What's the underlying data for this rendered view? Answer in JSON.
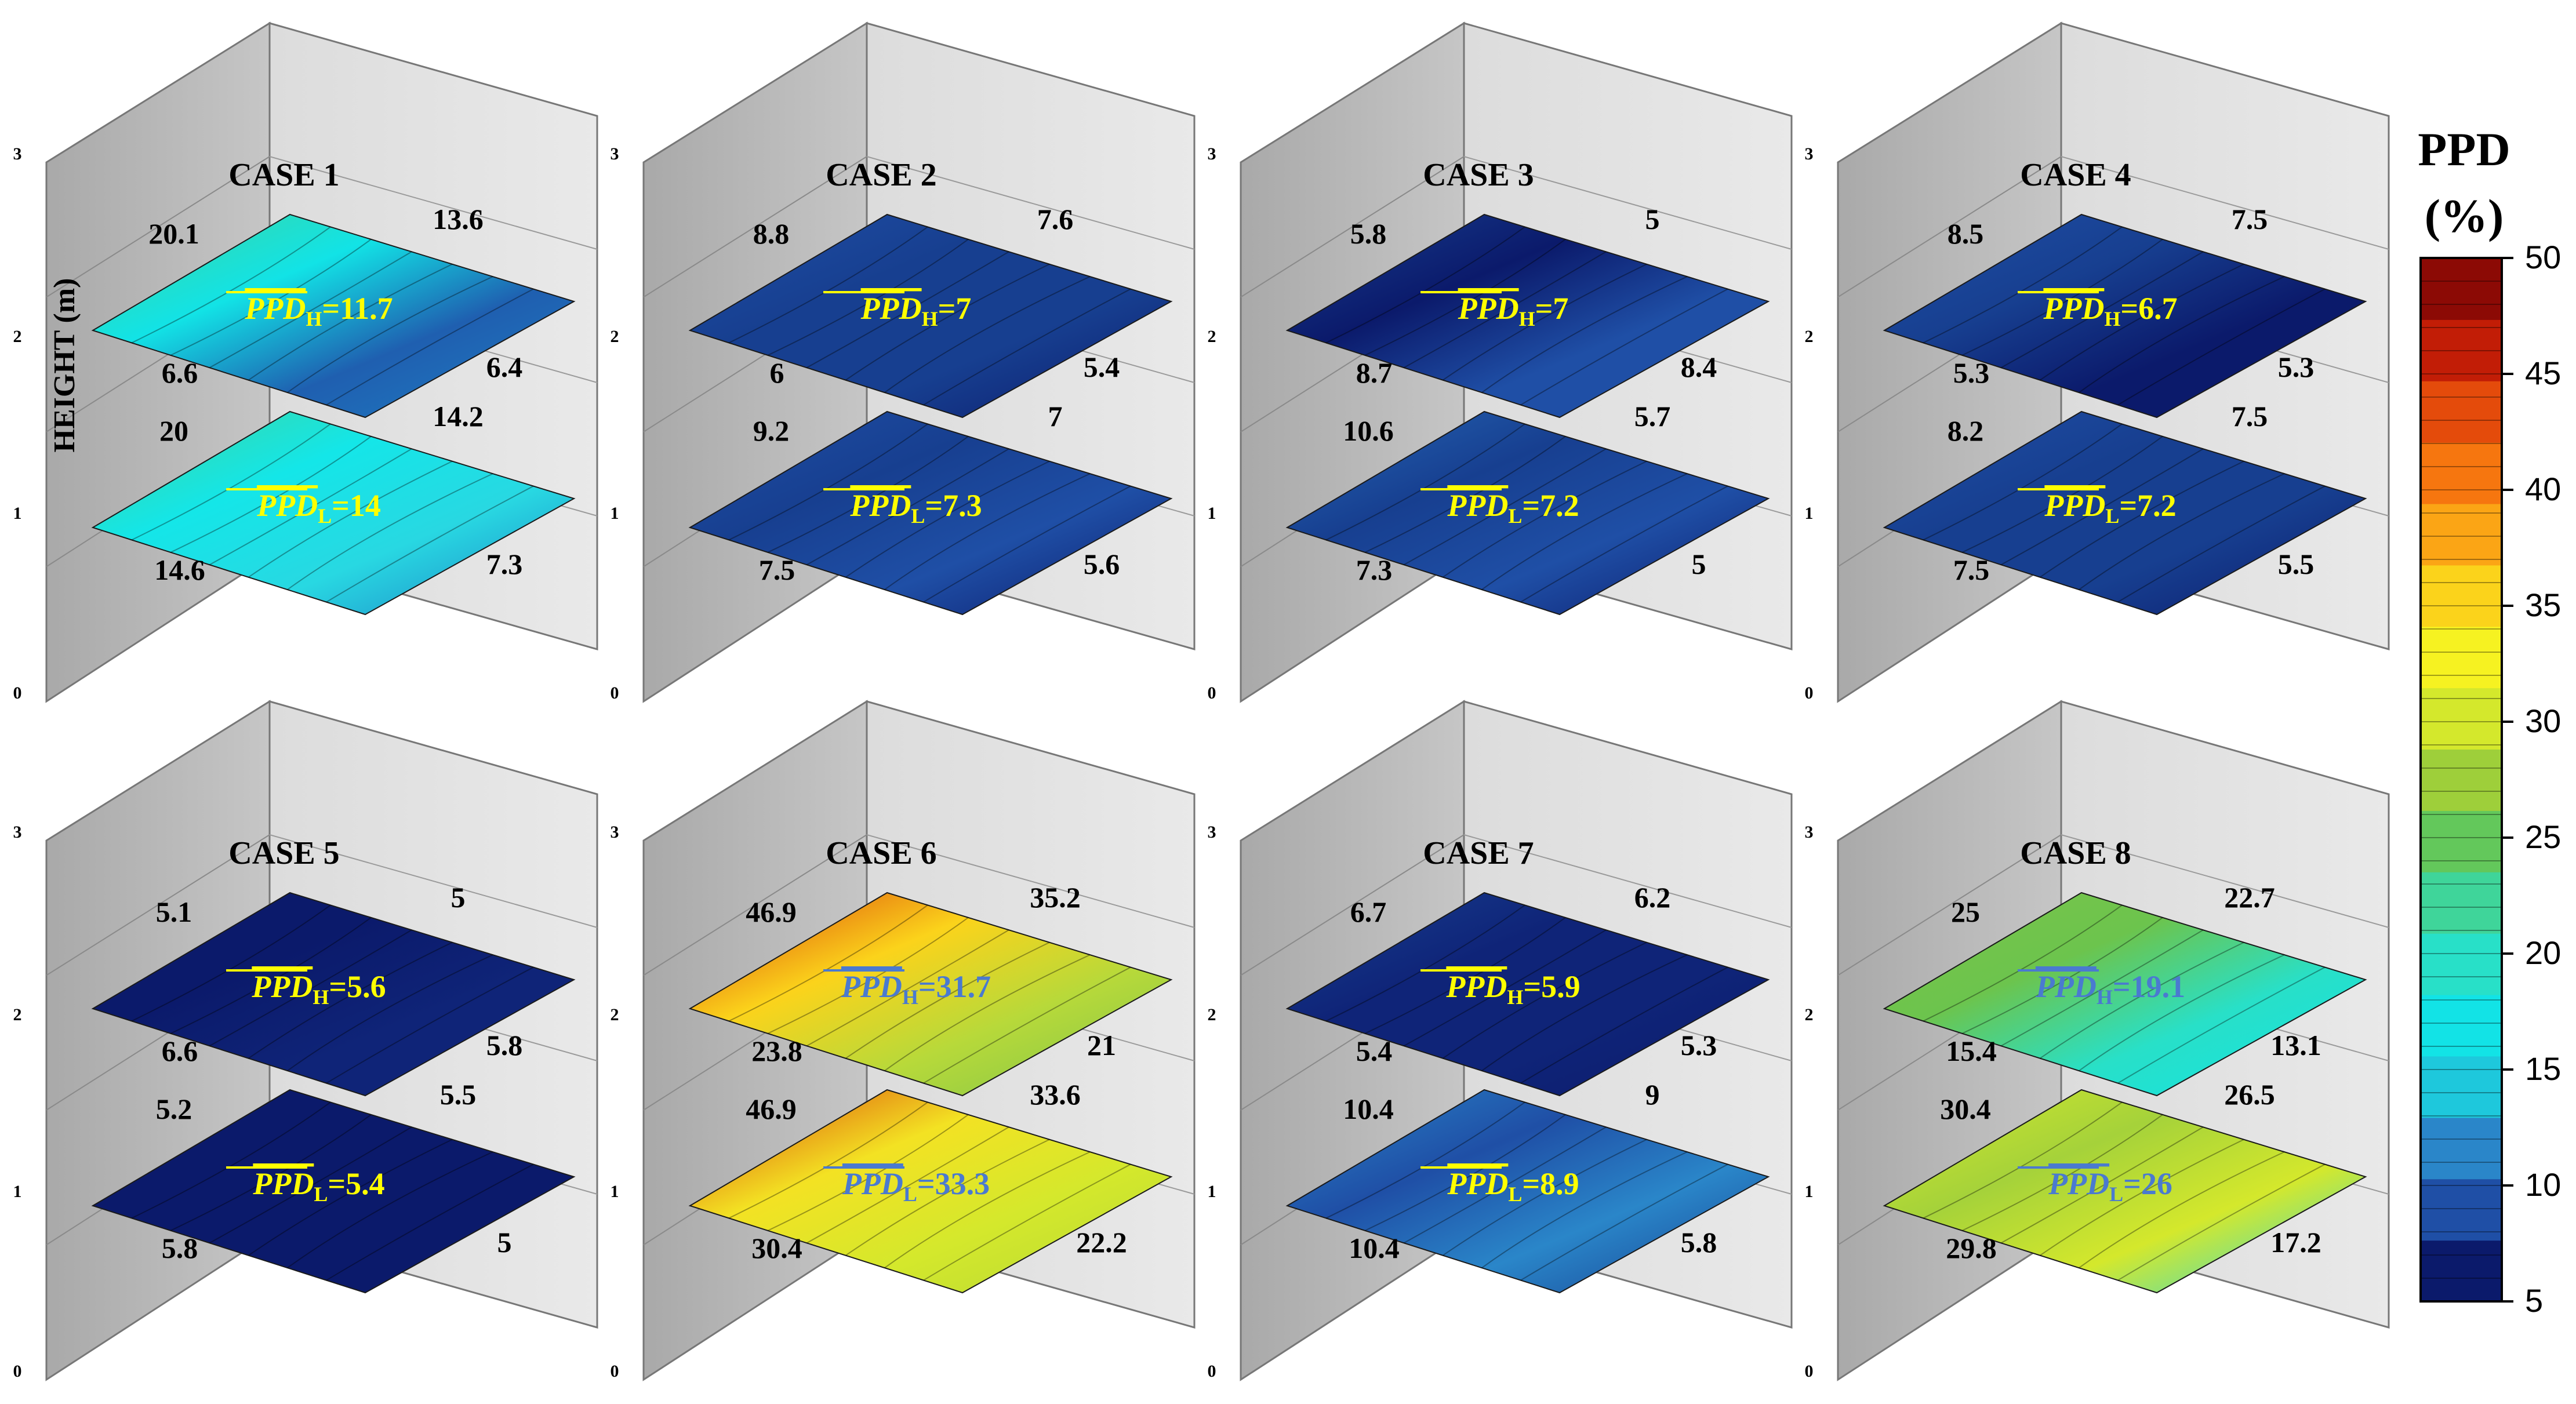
{
  "y_axis_label": "HEIGHT (m)",
  "height_ticks": [
    "0",
    "1",
    "2",
    "3"
  ],
  "colorbar": {
    "title_line1": "PPD",
    "title_line2": "(%)",
    "ticks": [
      "5",
      "10",
      "15",
      "20",
      "25",
      "30",
      "35",
      "40",
      "45",
      "50"
    ],
    "colors": [
      "#0b1a6b",
      "#1f4fa6",
      "#2a86c9",
      "#1ec8dc",
      "#12e3e6",
      "#28e0c8",
      "#3fd59a",
      "#63c85b",
      "#9ecf3a",
      "#d4e82c",
      "#f6f221",
      "#fbd31b",
      "#fba515",
      "#f6760f",
      "#e44b0b",
      "#c21d06",
      "#8c0a05"
    ]
  },
  "cases": [
    {
      "title": "CASE 1",
      "upper": {
        "avg": "=11.7",
        "sub": "H",
        "avg_color": "#ffff00",
        "colors": [
          "#3fd59a",
          "#12e3e6",
          "#1f5fb0",
          "#1e7fc4"
        ],
        "values": [
          "20.1",
          "13.6",
          "6.6",
          "6.4"
        ]
      },
      "lower": {
        "avg": "=14",
        "sub": "L",
        "avg_color": "#ffff00",
        "colors": [
          "#3fd59a",
          "#14e6e8",
          "#28d8e2",
          "#1e7fc4"
        ],
        "values": [
          "20",
          "14.2",
          "14.6",
          "7.3"
        ]
      }
    },
    {
      "title": "CASE 2",
      "upper": {
        "avg": "=7",
        "sub": "H",
        "avg_color": "#ffff00",
        "colors": [
          "#1f4fa6",
          "#173f90",
          "#173f90",
          "#0b1a6b"
        ],
        "values": [
          "8.8",
          "7.6",
          "6",
          "5.4"
        ]
      },
      "lower": {
        "avg": "=7.3",
        "sub": "L",
        "avg_color": "#ffff00",
        "colors": [
          "#1f4fa6",
          "#173f90",
          "#1f4fa6",
          "#0b1a6b"
        ],
        "values": [
          "9.2",
          "7",
          "7.5",
          "5.6"
        ]
      }
    },
    {
      "title": "CASE 3",
      "upper": {
        "avg": "=7",
        "sub": "H",
        "avg_color": "#ffff00",
        "colors": [
          "#173f90",
          "#0b1a6b",
          "#1f4fa6",
          "#1f4fa6"
        ],
        "values": [
          "5.8",
          "5",
          "8.7",
          "8.4"
        ]
      },
      "lower": {
        "avg": "=7.2",
        "sub": "L",
        "avg_color": "#ffff00",
        "colors": [
          "#2566b5",
          "#173f90",
          "#1f4fa6",
          "#0b1a6b"
        ],
        "values": [
          "10.6",
          "5.7",
          "7.3",
          "5"
        ]
      }
    },
    {
      "title": "CASE 4",
      "upper": {
        "avg": "=6.7",
        "sub": "H",
        "avg_color": "#ffff00",
        "colors": [
          "#1f4fa6",
          "#173f90",
          "#0b1a6b",
          "#0b1a6b"
        ],
        "values": [
          "8.5",
          "7.5",
          "5.3",
          "5.3"
        ]
      },
      "lower": {
        "avg": "=7.2",
        "sub": "L",
        "avg_color": "#ffff00",
        "colors": [
          "#1f4fa6",
          "#173f90",
          "#173f90",
          "#0b1a6b"
        ],
        "values": [
          "8.2",
          "7.5",
          "7.5",
          "5.5"
        ]
      }
    },
    {
      "title": "CASE 5",
      "upper": {
        "avg": "=5.6",
        "sub": "H",
        "avg_color": "#ffff00",
        "colors": [
          "#0b1a6b",
          "#0b1a6b",
          "#0f2478",
          "#0f2478"
        ],
        "values": [
          "5.1",
          "5",
          "6.6",
          "5.8"
        ]
      },
      "lower": {
        "avg": "=5.4",
        "sub": "L",
        "avg_color": "#ffff00",
        "colors": [
          "#0b1a6b",
          "#0b1a6b",
          "#0b1a6b",
          "#0b1a6b"
        ],
        "values": [
          "5.2",
          "5.5",
          "5.8",
          "5"
        ]
      }
    },
    {
      "title": "CASE 6",
      "upper": {
        "avg": "=31.7",
        "sub": "H",
        "avg_color": "#4a7ad0",
        "colors": [
          "#d83a0a",
          "#fbd31b",
          "#b7d93a",
          "#7cc44a"
        ],
        "values": [
          "46.9",
          "35.2",
          "23.8",
          "21"
        ]
      },
      "lower": {
        "avg": "=33.3",
        "sub": "L",
        "avg_color": "#4a7ad0",
        "colors": [
          "#d83a0a",
          "#f3e223",
          "#d4e82c",
          "#b4d835"
        ],
        "values": [
          "46.9",
          "33.6",
          "30.4",
          "22.2"
        ]
      }
    },
    {
      "title": "CASE 7",
      "upper": {
        "avg": "=5.9",
        "sub": "H",
        "avg_color": "#ffff00",
        "colors": [
          "#173f90",
          "#0f2478",
          "#0f2478",
          "#0b1a6b"
        ],
        "values": [
          "6.7",
          "6.2",
          "5.4",
          "5.3"
        ]
      },
      "lower": {
        "avg": "=8.9",
        "sub": "L",
        "avg_color": "#ffff00",
        "colors": [
          "#2a86c9",
          "#1f4fa6",
          "#2a86c9",
          "#173f90"
        ],
        "values": [
          "10.4",
          "9",
          "10.4",
          "5.8"
        ]
      }
    },
    {
      "title": "CASE 8",
      "upper": {
        "avg": "=19.1",
        "sub": "H",
        "avg_color": "#4a7ad0",
        "colors": [
          "#7cc44a",
          "#6cc44d",
          "#28e0c8",
          "#12e3e6"
        ],
        "values": [
          "25",
          "22.7",
          "15.4",
          "13.1"
        ]
      },
      "lower": {
        "avg": "=26",
        "sub": "L",
        "avg_color": "#4a7ad0",
        "colors": [
          "#d4e82c",
          "#a5d23a",
          "#d4e82c",
          "#28d8e2"
        ],
        "values": [
          "30.4",
          "26.5",
          "29.8",
          "17.2"
        ]
      }
    }
  ]
}
